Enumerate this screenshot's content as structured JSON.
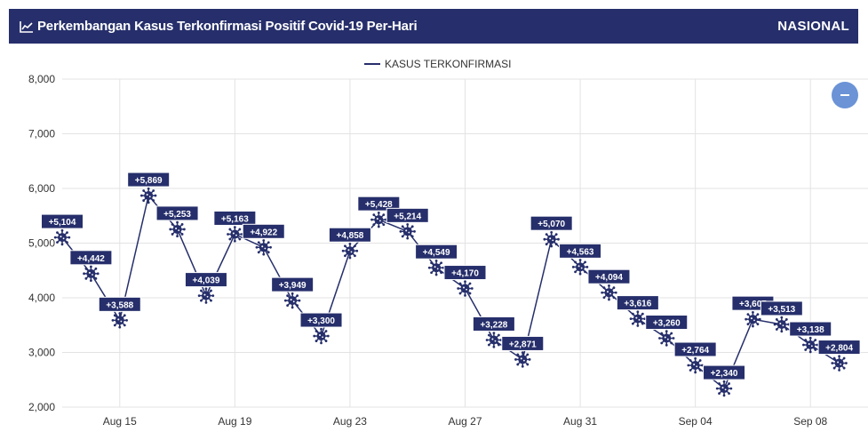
{
  "header": {
    "title": "Perkembangan Kasus Terkonfirmasi Positif Covid-19 Per-Hari",
    "badge": "NASIONAL",
    "background_color": "#262f6b",
    "title_icon": "line-chart-icon"
  },
  "collapse_button": {
    "icon": "minus-icon",
    "color": "#6b93d6"
  },
  "chart_data": {
    "type": "line",
    "title": "",
    "legend": {
      "position": "top-center",
      "label": "KASUS TERKONFIRMASI"
    },
    "ylim": [
      2000,
      8000
    ],
    "y_ticks": [
      "2,000",
      "3,000",
      "4,000",
      "5,000",
      "6,000",
      "7,000",
      "8,000"
    ],
    "x_ticks": [
      "Aug 15",
      "Aug 19",
      "Aug 23",
      "Aug 27",
      "Aug 31",
      "Sep 04",
      "Sep 08"
    ],
    "grid": true,
    "marker": "virus-icon",
    "color": "#262f6b",
    "series": [
      {
        "name": "KASUS TERKONFIRMASI",
        "x": [
          "2020-08-13",
          "2020-08-14",
          "2020-08-15",
          "2020-08-16",
          "2020-08-17",
          "2020-08-18",
          "2020-08-19",
          "2020-08-20",
          "2020-08-21",
          "2020-08-22",
          "2020-08-23",
          "2020-08-24",
          "2020-08-25",
          "2020-08-26",
          "2020-08-27",
          "2020-08-28",
          "2020-08-29",
          "2020-08-30",
          "2020-08-31",
          "2020-09-01",
          "2020-09-02",
          "2020-09-03",
          "2020-09-04",
          "2020-09-05",
          "2020-09-06",
          "2020-09-07",
          "2020-09-08",
          "2020-09-09",
          "2020-09-10"
        ],
        "values": [
          5104,
          4442,
          3588,
          5869,
          5253,
          4039,
          5163,
          4922,
          3949,
          3300,
          4858,
          5428,
          5214,
          4549,
          4170,
          3228,
          2871,
          5070,
          4563,
          4094,
          3616,
          3260,
          2764,
          2340,
          3607,
          3513,
          3138,
          2804,
          null
        ],
        "labels": [
          "+5,104",
          "+4,442",
          "+3,588",
          "+5,869",
          "+5,253",
          "+4,039",
          "+5,163",
          "+4,922",
          "+3,949",
          "+3,300",
          "+4,858",
          "+5,428",
          "+5,214",
          "+4,549",
          "+4,170",
          "+3,228",
          "+2,871",
          "+5,070",
          "+4,563",
          "+4,094",
          "+3,616",
          "+3,260",
          "+2,764",
          "+2,340",
          "+3,607",
          "+3,513",
          "+3,138",
          "+2,804",
          ""
        ]
      }
    ]
  }
}
